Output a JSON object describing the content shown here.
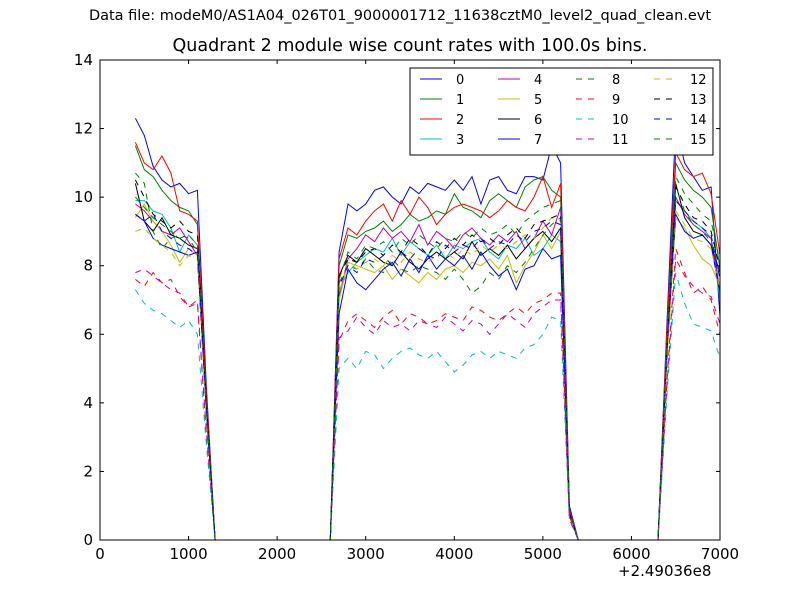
{
  "header": {
    "suptitle": "Data file: modeM0/AS1A04_026T01_9000001712_11638cztM0_level2_quad_clean.evt"
  },
  "chart_data": {
    "type": "line",
    "title": "Quadrant 2 module wise count rates with 100.0s bins.",
    "xlabel": "",
    "ylabel": "",
    "x_offset_label": "+2.49036e8",
    "xlim": [
      0,
      7000
    ],
    "ylim": [
      0,
      14
    ],
    "xticks": [
      0,
      1000,
      2000,
      3000,
      4000,
      5000,
      6000,
      7000
    ],
    "yticks": [
      0,
      2,
      4,
      6,
      8,
      10,
      12,
      14
    ],
    "legend_position": "top-right",
    "x": [
      400,
      500,
      600,
      700,
      800,
      900,
      1000,
      1100,
      1200,
      1300,
      1400,
      2600,
      2700,
      2800,
      2900,
      3000,
      3100,
      3200,
      3300,
      3400,
      3500,
      3600,
      3700,
      3800,
      3900,
      4000,
      4100,
      4200,
      4300,
      4400,
      4500,
      4600,
      4700,
      4800,
      4900,
      5000,
      5100,
      5200,
      5300,
      5400,
      6300,
      6400,
      6500,
      6600,
      6700,
      6800,
      6900,
      7000
    ],
    "series": [
      {
        "name": "0",
        "color": "#0000ff",
        "dash": "solid",
        "values": [
          12.3,
          11.8,
          10.9,
          10.5,
          10.3,
          10.4,
          10.1,
          10.2,
          4.5,
          0,
          0,
          0,
          8.4,
          9.8,
          9.6,
          9.8,
          10.2,
          10.3,
          10.0,
          9.8,
          10.3,
          10.1,
          10.4,
          10.3,
          10.2,
          10.5,
          10.2,
          10.6,
          9.8,
          10.5,
          10.6,
          10.2,
          10.1,
          10.6,
          10.6,
          10.5,
          11.5,
          11.0,
          1.0,
          0,
          0,
          6.3,
          12.1,
          11.0,
          10.6,
          10.2,
          10.3,
          6.5
        ]
      },
      {
        "name": "1",
        "color": "#008000",
        "dash": "solid",
        "values": [
          11.5,
          10.8,
          10.6,
          10.2,
          9.9,
          9.7,
          9.6,
          9.2,
          4.2,
          0,
          0,
          0,
          8.0,
          8.9,
          8.8,
          9.0,
          9.1,
          9.3,
          9.0,
          9.2,
          9.5,
          9.3,
          9.4,
          9.6,
          9.5,
          10.1,
          9.7,
          9.6,
          9.4,
          9.9,
          10.1,
          9.9,
          9.7,
          10.3,
          10.5,
          10.6,
          10.2,
          10.0,
          0.9,
          0,
          0,
          6.0,
          11.0,
          10.5,
          10.2,
          10.0,
          9.7,
          7.9
        ]
      },
      {
        "name": "2",
        "color": "#ff0000",
        "dash": "solid",
        "values": [
          11.6,
          11.0,
          10.8,
          11.2,
          10.7,
          9.6,
          9.5,
          9.3,
          4.3,
          0,
          0,
          0,
          8.2,
          9.1,
          8.9,
          9.3,
          9.6,
          9.8,
          9.3,
          9.9,
          9.5,
          10.0,
          9.7,
          9.2,
          9.5,
          9.7,
          9.8,
          9.7,
          9.6,
          9.4,
          9.6,
          9.9,
          9.7,
          9.6,
          10.0,
          10.6,
          9.7,
          10.4,
          0.9,
          0,
          0,
          6.1,
          11.3,
          10.8,
          10.6,
          10.7,
          10.1,
          8.3
        ]
      },
      {
        "name": "3",
        "color": "#00bfbf",
        "dash": "solid",
        "values": [
          9.9,
          9.9,
          9.6,
          9.5,
          9.1,
          8.4,
          8.9,
          8.6,
          3.9,
          0,
          0,
          0,
          7.3,
          7.8,
          8.1,
          8.3,
          8.5,
          8.4,
          8.8,
          8.3,
          8.7,
          8.5,
          8.3,
          8.6,
          8.2,
          8.6,
          8.5,
          8.7,
          8.8,
          8.4,
          8.2,
          8.6,
          8.5,
          8.8,
          8.3,
          8.5,
          8.9,
          8.7,
          0.8,
          0,
          0,
          5.5,
          9.9,
          9.6,
          9.3,
          9.1,
          8.8,
          7.0
        ]
      },
      {
        "name": "4",
        "color": "#bf00bf",
        "dash": "solid",
        "values": [
          9.8,
          9.6,
          9.3,
          9.0,
          8.9,
          9.1,
          8.7,
          8.3,
          3.8,
          0,
          0,
          0,
          7.1,
          8.2,
          8.5,
          8.9,
          8.7,
          9.1,
          8.8,
          9.0,
          8.7,
          9.2,
          8.6,
          9.0,
          8.8,
          8.5,
          8.9,
          9.1,
          8.8,
          8.6,
          8.9,
          8.7,
          9.0,
          8.5,
          8.8,
          9.3,
          8.9,
          9.7,
          0.8,
          0,
          0,
          5.6,
          10.0,
          9.5,
          9.2,
          9.0,
          8.8,
          7.3
        ]
      },
      {
        "name": "5",
        "color": "#bfbf00",
        "dash": "solid",
        "values": [
          9.4,
          9.8,
          9.3,
          9.0,
          8.6,
          8.1,
          8.5,
          8.3,
          3.8,
          0,
          0,
          0,
          7.0,
          8.1,
          8.0,
          7.9,
          7.8,
          8.0,
          7.6,
          7.9,
          7.7,
          7.5,
          7.8,
          7.6,
          7.9,
          8.0,
          7.8,
          8.1,
          8.0,
          8.2,
          7.9,
          8.3,
          7.5,
          8.0,
          8.4,
          8.9,
          8.5,
          9.0,
          0.8,
          0,
          0,
          5.2,
          9.4,
          9.1,
          8.6,
          8.2,
          8.0,
          7.4
        ]
      },
      {
        "name": "6",
        "color": "#000000",
        "dash": "solid",
        "values": [
          10.4,
          9.3,
          9.0,
          9.4,
          8.9,
          8.8,
          8.6,
          8.5,
          3.9,
          0,
          0,
          0,
          7.7,
          8.3,
          8.1,
          8.5,
          8.3,
          8.1,
          8.0,
          8.4,
          8.1,
          7.9,
          8.2,
          8.4,
          8.2,
          8.4,
          8.2,
          8.7,
          8.3,
          8.5,
          8.3,
          8.6,
          8.2,
          8.5,
          8.8,
          9.0,
          8.7,
          9.1,
          0.8,
          0,
          0,
          5.4,
          10.4,
          9.4,
          9.0,
          8.9,
          8.6,
          7.8
        ]
      },
      {
        "name": "7",
        "color": "#0000ff",
        "dash": "solid",
        "values": [
          9.5,
          9.3,
          8.8,
          8.6,
          8.5,
          8.4,
          8.3,
          8.4,
          3.8,
          0,
          0,
          0,
          6.6,
          7.9,
          7.5,
          7.3,
          7.6,
          7.9,
          8.1,
          7.7,
          8.2,
          7.8,
          8.3,
          7.9,
          8.2,
          8.0,
          8.3,
          7.9,
          8.4,
          8.0,
          7.7,
          7.9,
          7.3,
          7.9,
          8.0,
          8.5,
          8.2,
          8.3,
          0.8,
          0,
          0,
          5.5,
          9.5,
          9.0,
          8.8,
          8.9,
          8.6,
          7.2
        ]
      },
      {
        "name": "8",
        "color": "#008000",
        "dash": "dashed",
        "values": [
          10.7,
          10.4,
          9.0,
          8.5,
          8.8,
          8.9,
          8.8,
          8.4,
          3.8,
          0,
          0,
          0,
          7.5,
          8.0,
          7.9,
          8.2,
          7.9,
          7.8,
          8.2,
          7.9,
          7.8,
          8.0,
          7.9,
          7.8,
          7.6,
          7.9,
          7.6,
          7.2,
          7.4,
          7.8,
          7.6,
          8.0,
          7.8,
          8.1,
          8.5,
          8.9,
          9.2,
          9.4,
          0.7,
          0,
          0,
          5.7,
          10.3,
          9.6,
          9.2,
          9.0,
          8.7,
          7.7
        ]
      },
      {
        "name": "9",
        "color": "#ff0000",
        "dash": "dashed",
        "values": [
          7.6,
          7.4,
          7.8,
          7.5,
          7.6,
          7.1,
          6.8,
          6.9,
          3.1,
          0,
          0,
          0,
          5.8,
          6.4,
          6.6,
          6.4,
          6.2,
          6.5,
          6.7,
          6.3,
          6.6,
          6.5,
          6.3,
          6.4,
          6.6,
          6.5,
          6.4,
          6.8,
          6.7,
          6.5,
          6.4,
          6.6,
          6.8,
          6.6,
          6.9,
          7.0,
          7.2,
          7.2,
          0.7,
          0,
          0,
          4.6,
          8.5,
          7.8,
          7.2,
          7.4,
          7.0,
          6.0
        ]
      },
      {
        "name": "10",
        "color": "#00bfbf",
        "dash": "dashed",
        "values": [
          7.3,
          6.9,
          6.7,
          6.6,
          6.4,
          6.2,
          6.4,
          6.0,
          2.8,
          0,
          0,
          0,
          5.0,
          5.3,
          5.0,
          5.5,
          5.4,
          5.0,
          5.3,
          5.5,
          5.6,
          5.4,
          5.3,
          5.5,
          5.2,
          4.9,
          5.1,
          5.4,
          5.5,
          5.3,
          5.5,
          5.4,
          5.3,
          5.6,
          5.7,
          6.0,
          6.5,
          6.4,
          0.6,
          0,
          0,
          4.2,
          7.8,
          6.9,
          6.3,
          6.2,
          6.1,
          5.3
        ]
      },
      {
        "name": "11",
        "color": "#bf00bf",
        "dash": "dashed",
        "values": [
          7.8,
          7.9,
          7.7,
          7.5,
          7.3,
          7.2,
          6.8,
          7.0,
          3.2,
          0,
          0,
          0,
          5.9,
          6.1,
          6.5,
          6.2,
          6.0,
          6.4,
          6.2,
          6.3,
          6.1,
          6.4,
          6.3,
          6.2,
          6.5,
          6.3,
          6.1,
          6.4,
          6.3,
          6.0,
          6.3,
          6.6,
          6.4,
          6.2,
          6.6,
          6.8,
          7.0,
          7.0,
          0.6,
          0,
          0,
          4.5,
          8.2,
          7.7,
          7.4,
          7.2,
          7.1,
          6.3
        ]
      },
      {
        "name": "12",
        "color": "#bfbf00",
        "dash": "dashed",
        "values": [
          9.0,
          9.1,
          8.8,
          8.6,
          8.4,
          8.0,
          8.3,
          8.2,
          3.7,
          0,
          0,
          0,
          7.2,
          8.1,
          7.9,
          8.1,
          8.2,
          8.0,
          8.3,
          8.1,
          8.4,
          8.2,
          8.1,
          8.3,
          8.4,
          8.2,
          8.5,
          8.3,
          8.6,
          8.4,
          8.6,
          8.5,
          8.7,
          8.9,
          8.8,
          9.1,
          9.4,
          9.3,
          0.8,
          0,
          0,
          5.3,
          9.6,
          9.2,
          8.8,
          8.7,
          8.5,
          7.3
        ]
      },
      {
        "name": "13",
        "color": "#000000",
        "dash": "dashed",
        "values": [
          10.5,
          10.0,
          9.5,
          9.3,
          9.1,
          9.3,
          9.0,
          8.9,
          4.0,
          0,
          0,
          0,
          7.7,
          8.2,
          8.1,
          8.4,
          8.5,
          8.3,
          8.6,
          8.4,
          8.8,
          8.6,
          8.3,
          8.7,
          8.5,
          8.8,
          8.6,
          8.9,
          8.7,
          8.8,
          8.6,
          8.9,
          9.1,
          8.8,
          9.2,
          9.3,
          9.4,
          9.5,
          0.8,
          0,
          0,
          5.6,
          10.3,
          9.8,
          9.4,
          9.3,
          9.0,
          7.9
        ]
      },
      {
        "name": "14",
        "color": "#0000ff",
        "dash": "dashed",
        "values": [
          9.5,
          9.3,
          9.5,
          9.0,
          8.8,
          8.6,
          8.5,
          8.3,
          3.8,
          0,
          0,
          0,
          7.4,
          8.0,
          7.8,
          8.2,
          8.1,
          8.3,
          8.0,
          8.4,
          8.2,
          8.5,
          8.3,
          8.2,
          8.6,
          8.4,
          8.6,
          8.5,
          8.8,
          8.5,
          8.7,
          8.6,
          8.9,
          8.7,
          9.0,
          9.1,
          9.3,
          9.2,
          0.8,
          0,
          0,
          5.5,
          9.9,
          9.6,
          9.3,
          9.1,
          8.9,
          7.6
        ]
      },
      {
        "name": "15",
        "color": "#008000",
        "dash": "dashed",
        "values": [
          10.0,
          9.7,
          9.4,
          9.2,
          9.0,
          8.8,
          8.9,
          8.6,
          3.9,
          0,
          0,
          0,
          7.6,
          8.4,
          8.2,
          8.6,
          8.5,
          8.7,
          8.4,
          8.8,
          8.6,
          8.9,
          8.7,
          8.5,
          8.8,
          8.7,
          9.0,
          8.8,
          9.1,
          8.9,
          9.0,
          9.2,
          8.9,
          9.3,
          9.5,
          9.7,
          9.8,
          9.9,
          0.8,
          0,
          0,
          5.7,
          10.6,
          10.1,
          9.8,
          9.5,
          9.3,
          8.1
        ]
      }
    ]
  }
}
